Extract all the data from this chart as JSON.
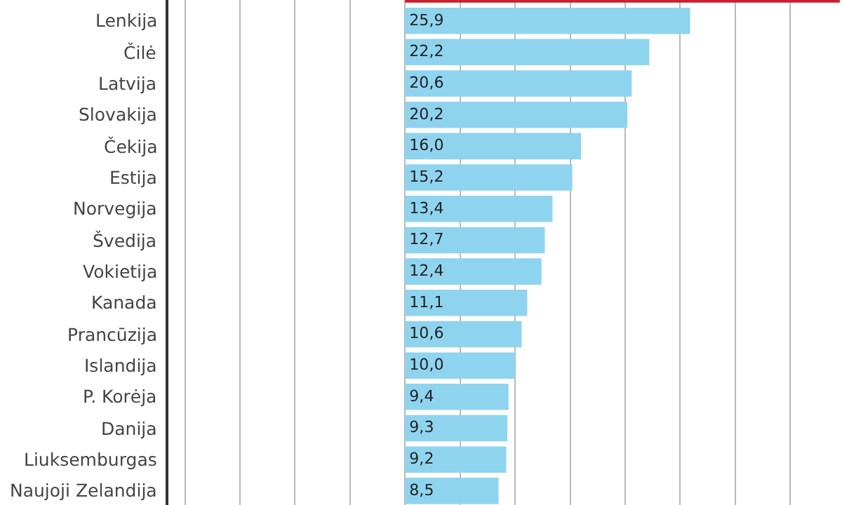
{
  "chart_data": {
    "type": "bar",
    "orientation": "horizontal",
    "categories": [
      null,
      "Lenkija",
      "Čilė",
      "Latvija",
      "Slovakija",
      "Čekija",
      "Estija",
      "Norvegija",
      "Švedija",
      "Vokietija",
      "Kanada",
      "Prancūzija",
      "Islandija",
      "P. Korėja",
      "Danija",
      "Liuksemburgas",
      "Naujoji Zelandija"
    ],
    "values": [
      39.5,
      25.9,
      22.2,
      20.6,
      20.2,
      16.0,
      15.2,
      13.4,
      12.7,
      12.4,
      11.1,
      10.6,
      10.0,
      9.4,
      9.3,
      9.2,
      8.5
    ],
    "value_labels": [
      null,
      "25,9",
      "22,2",
      "20,6",
      "20,2",
      "16,0",
      "15,2",
      "13,4",
      "12,7",
      "12,4",
      "11,1",
      "10,6",
      "10,0",
      "9,4",
      "9,3",
      "9,2",
      "8,5"
    ],
    "colors": [
      "#c8202f",
      "#8fd4ef",
      "#8fd4ef",
      "#8fd4ef",
      "#8fd4ef",
      "#8fd4ef",
      "#8fd4ef",
      "#8fd4ef",
      "#8fd4ef",
      "#8fd4ef",
      "#8fd4ef",
      "#8fd4ef",
      "#8fd4ef",
      "#8fd4ef",
      "#8fd4ef",
      "#8fd4ef",
      "#8fd4ef"
    ],
    "xlim": [
      -21.5,
      39.7
    ],
    "xticks": [
      {
        "value": -20,
        "label": null
      },
      {
        "value": -15,
        "label": null
      },
      {
        "value": -10,
        "label": null
      },
      {
        "value": -5,
        "label": null
      },
      {
        "value": 0,
        "label": null
      },
      {
        "value": 5,
        "label": null
      },
      {
        "value": 10,
        "label": null
      },
      {
        "value": 15,
        "label": null
      },
      {
        "value": 20,
        "label": null
      },
      {
        "value": 25,
        "label": null
      },
      {
        "value": 30,
        "label": null
      },
      {
        "value": 35,
        "label": null
      }
    ],
    "grid": "x",
    "tick_labels": "y"
  }
}
